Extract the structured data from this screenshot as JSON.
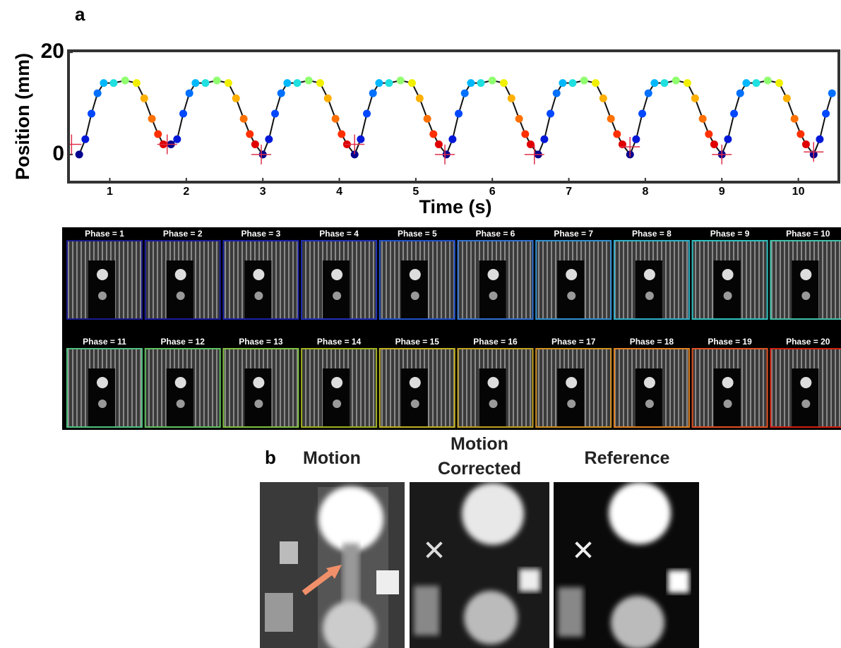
{
  "chart_data": {
    "type": "line",
    "panel_label": "a",
    "x_label": "Time (s)",
    "y_label": "Position (mm)",
    "xlim": [
      0.46,
      10.53
    ],
    "ylim": [
      -5.4,
      20.3
    ],
    "xticks": [
      1,
      2,
      3,
      4,
      5,
      6,
      7,
      8,
      9,
      10
    ],
    "yticks": [
      0,
      20
    ],
    "line_color": "#111111",
    "series": [
      {
        "x": [
          0.6,
          0.68,
          0.76,
          0.84,
          0.92,
          1.05,
          1.2,
          1.35,
          1.45,
          1.55,
          1.63,
          1.7,
          1.8,
          1.88,
          1.96,
          2.04,
          2.12,
          2.25,
          2.4,
          2.55,
          2.65,
          2.75,
          2.83,
          2.9,
          3.0,
          3.08,
          3.16,
          3.24,
          3.32,
          3.45,
          3.6,
          3.75,
          3.85,
          3.95,
          4.03,
          4.1,
          4.2,
          4.28,
          4.36,
          4.44,
          4.52,
          4.65,
          4.8,
          4.95,
          5.05,
          5.15,
          5.23,
          5.3,
          5.4,
          5.48,
          5.56,
          5.64,
          5.72,
          5.85,
          6.0,
          6.15,
          6.25,
          6.35,
          6.43,
          6.5,
          6.6,
          6.68,
          6.76,
          6.84,
          6.92,
          7.05,
          7.2,
          7.35,
          7.45,
          7.55,
          7.63,
          7.7,
          7.8,
          7.88,
          7.96,
          8.04,
          8.12,
          8.25,
          8.4,
          8.55,
          8.65,
          8.75,
          8.83,
          8.9,
          9.0,
          9.08,
          9.16,
          9.24,
          9.32,
          9.45,
          9.6,
          9.75,
          9.85,
          9.95,
          10.03,
          10.1,
          10.2,
          10.28,
          10.36,
          10.44
        ],
        "values": [
          0,
          3,
          8,
          12,
          14,
          14,
          14.5,
          14,
          11,
          7,
          4,
          2,
          2,
          3,
          8,
          12,
          14,
          14,
          14.5,
          14,
          11,
          7,
          4,
          2,
          0,
          3,
          8,
          12,
          14,
          14,
          14.5,
          14,
          11,
          7,
          4,
          2,
          0,
          3,
          8,
          12,
          14,
          14,
          14.5,
          14,
          11,
          7,
          4,
          2,
          0,
          3,
          8,
          12,
          14,
          14,
          14.5,
          14,
          11,
          7,
          4,
          2,
          0,
          3,
          8,
          12,
          14,
          14,
          14.5,
          14,
          11,
          7,
          4,
          2,
          0,
          3,
          8,
          12,
          14,
          14,
          14.5,
          14,
          11,
          7,
          4,
          2,
          0,
          3,
          8,
          12,
          14,
          14,
          14.5,
          14,
          11,
          7,
          4,
          2,
          0,
          3,
          8,
          12
        ],
        "colors": [
          "#00008f",
          "#0018d8",
          "#0048ff",
          "#0070ff",
          "#00b8ff",
          "#20e0e0",
          "#90ff70",
          "#f0f000",
          "#ffb000",
          "#ff7000",
          "#ff3000",
          "#e00000",
          "#00008f",
          "#0018d8",
          "#0048ff",
          "#0070ff",
          "#00b8ff",
          "#20e0e0",
          "#90ff70",
          "#f0f000",
          "#ffb000",
          "#ff7000",
          "#ff3000",
          "#e00000",
          "#00008f",
          "#0018d8",
          "#0048ff",
          "#0070ff",
          "#00b8ff",
          "#20e0e0",
          "#90ff70",
          "#f0f000",
          "#ffb000",
          "#ff7000",
          "#ff3000",
          "#e00000",
          "#00008f",
          "#0018d8",
          "#0048ff",
          "#0070ff",
          "#00b8ff",
          "#20e0e0",
          "#90ff70",
          "#f0f000",
          "#ffb000",
          "#ff7000",
          "#ff3000",
          "#e00000",
          "#00008f",
          "#0018d8",
          "#0048ff",
          "#0070ff",
          "#00b8ff",
          "#20e0e0",
          "#90ff70",
          "#f0f000",
          "#ffb000",
          "#ff7000",
          "#ff3000",
          "#e00000",
          "#00008f",
          "#0018d8",
          "#0048ff",
          "#0070ff",
          "#00b8ff",
          "#20e0e0",
          "#90ff70",
          "#f0f000",
          "#ffb000",
          "#ff7000",
          "#ff3000",
          "#e00000",
          "#00008f",
          "#0018d8",
          "#0048ff",
          "#0070ff",
          "#00b8ff",
          "#20e0e0",
          "#90ff70",
          "#f0f000",
          "#ffb000",
          "#ff7000",
          "#ff3000",
          "#e00000",
          "#00008f",
          "#0018d8",
          "#0048ff",
          "#0070ff",
          "#00b8ff",
          "#20e0e0",
          "#90ff70",
          "#f0f000",
          "#ffb000",
          "#ff7000",
          "#ff3000",
          "#e00000",
          "#00008f",
          "#0018d8",
          "#0048ff",
          "#0070ff"
        ]
      },
      {
        "marker": "cross",
        "color": "#e0304a",
        "x": [
          0.5,
          1.75,
          2.98,
          4.2,
          5.38,
          6.55,
          7.8,
          9.0,
          10.2
        ],
        "values": [
          2,
          2,
          0,
          2,
          0,
          0,
          1.5,
          0,
          0.5
        ]
      }
    ]
  },
  "phases": {
    "labels": [
      "Phase = 1",
      "Phase = 2",
      "Phase = 3",
      "Phase = 4",
      "Phase = 5",
      "Phase = 6",
      "Phase = 7",
      "Phase = 8",
      "Phase = 9",
      "Phase = 10",
      "Phase = 11",
      "Phase = 12",
      "Phase = 13",
      "Phase = 14",
      "Phase = 15",
      "Phase = 16",
      "Phase = 17",
      "Phase = 18",
      "Phase = 19",
      "Phase = 20"
    ],
    "colors": [
      "#1a1a8c",
      "#1a1a9c",
      "#1a20a8",
      "#2030b8",
      "#2050c8",
      "#3070d0",
      "#3090d0",
      "#30b0c8",
      "#30c0c0",
      "#40c0a8",
      "#50c080",
      "#60c060",
      "#80c040",
      "#a0b020",
      "#c0b020",
      "#c0a020",
      "#d09020",
      "#e08020",
      "#e05020",
      "#d02010"
    ]
  },
  "panel_b": {
    "label": "b",
    "titles": [
      "Motion",
      "Motion Corrected",
      "Reference"
    ]
  }
}
